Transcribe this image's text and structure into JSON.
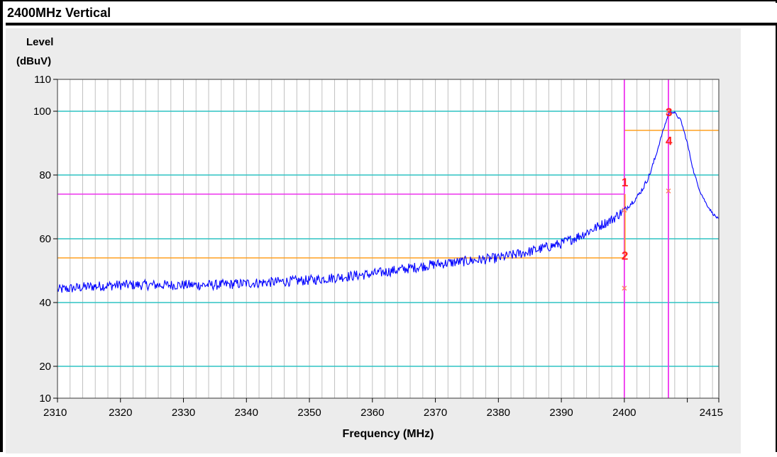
{
  "window": {
    "title": "2400MHz Vertical"
  },
  "chart_data": {
    "type": "line",
    "title": "2400MHz Vertical",
    "ylabel_line1": "Level",
    "ylabel_line2": "(dBuV)",
    "xlabel": "Frequency (MHz)",
    "xlim": [
      2310,
      2415
    ],
    "ylim": [
      10,
      110
    ],
    "x_ticks": [
      2310,
      2320,
      2330,
      2340,
      2350,
      2360,
      2370,
      2380,
      2390,
      2400,
      2415
    ],
    "y_ticks": [
      10,
      20,
      40,
      60,
      80,
      100,
      110
    ],
    "grid": true,
    "colors": {
      "plot_bg": "#ffffff",
      "panel_bg": "#ececec",
      "trace": "#0000ff",
      "hgrid": "#2ec4c4",
      "vgrid": "#c0c0c0",
      "limit_magenta": "#ee33ee",
      "limit_orange": "#ffa020",
      "marker_label": "#ff2020",
      "marker_x": "#ff8060"
    },
    "series": [
      {
        "points": [
          [
            2310,
            44
          ],
          [
            2315,
            45
          ],
          [
            2320,
            45.5
          ],
          [
            2325,
            45.5
          ],
          [
            2330,
            45.5
          ],
          [
            2335,
            45.5
          ],
          [
            2340,
            46
          ],
          [
            2345,
            46.5
          ],
          [
            2350,
            47
          ],
          [
            2355,
            48
          ],
          [
            2360,
            49
          ],
          [
            2365,
            50.5
          ],
          [
            2370,
            52
          ],
          [
            2375,
            53
          ],
          [
            2380,
            54
          ],
          [
            2385,
            56
          ],
          [
            2390,
            58.5
          ],
          [
            2393,
            61
          ],
          [
            2396,
            64
          ],
          [
            2398,
            66
          ],
          [
            2400,
            69
          ],
          [
            2401,
            71
          ],
          [
            2402,
            73
          ],
          [
            2403,
            76
          ],
          [
            2404,
            80
          ],
          [
            2405,
            86
          ],
          [
            2406,
            93
          ],
          [
            2407,
            99
          ],
          [
            2407.3,
            100
          ],
          [
            2408,
            99.5
          ],
          [
            2409,
            97
          ],
          [
            2410,
            90
          ],
          [
            2411,
            81
          ],
          [
            2412,
            75
          ],
          [
            2413,
            71
          ],
          [
            2414,
            68
          ],
          [
            2415,
            66
          ]
        ],
        "noise_region_end_mhz": 2400
      }
    ],
    "limit_lines": [
      {
        "name": "peak-limit",
        "value": 74,
        "x_range": [
          2310,
          2400
        ]
      },
      {
        "name": "average-limit",
        "value": 54,
        "x_range": [
          2310,
          2400
        ]
      },
      {
        "name": "band-peak-limit",
        "value": 94,
        "x_range": [
          2400,
          2415
        ]
      }
    ],
    "vertical_lines": [
      2400,
      2407
    ],
    "markers": [
      {
        "label": "1",
        "x": 2400,
        "y": 69,
        "label_y": 78
      },
      {
        "label": "2",
        "x": 2400,
        "y": 44.5,
        "label_y": 55
      },
      {
        "label": "3",
        "x": 2407,
        "y": 100,
        "label_y": 100
      },
      {
        "label": "4",
        "x": 2407,
        "y": 75,
        "label_y": 91
      }
    ]
  }
}
